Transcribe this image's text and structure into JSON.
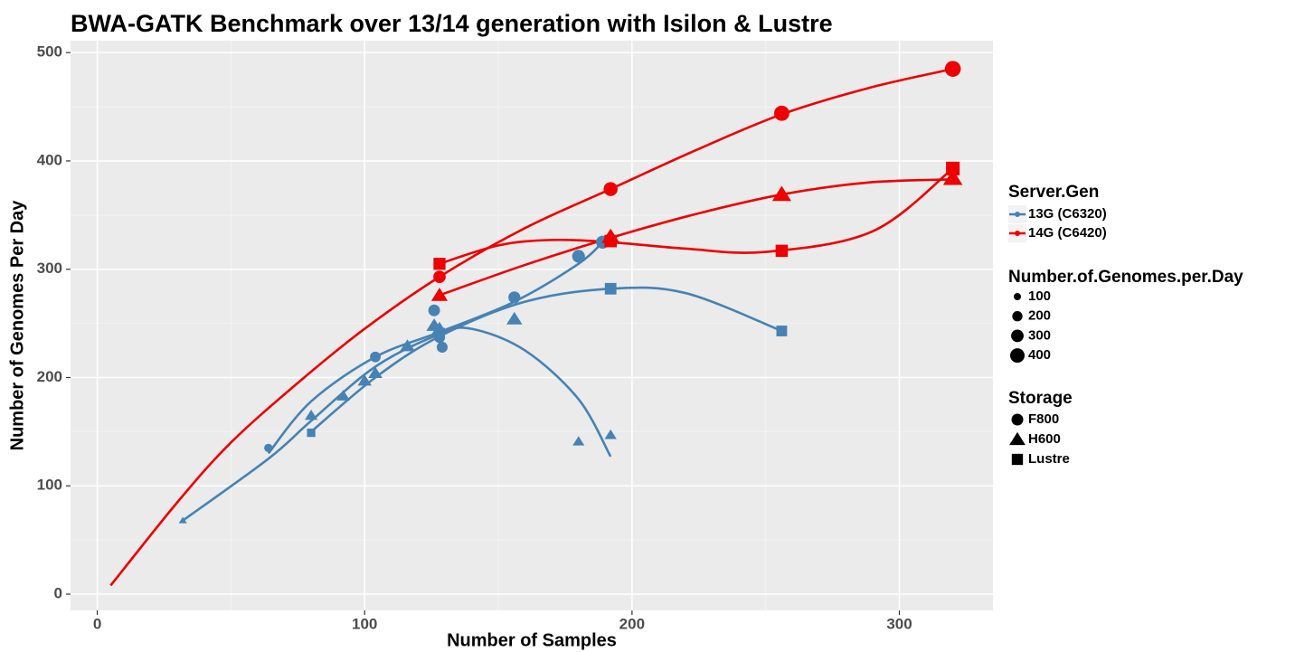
{
  "chart_data": {
    "type": "scatter",
    "title": "BWA-GATK Benchmark over 13/14 generation with Isilon & Lustre",
    "x_label": "Number of Samples",
    "y_label": "Number of Genomes Per Day",
    "xlim": [
      -10,
      335
    ],
    "ylim": [
      -15,
      511
    ],
    "xticks": [
      0,
      100,
      200,
      300
    ],
    "yticks": [
      0,
      100,
      200,
      300,
      400,
      500
    ],
    "grid": true,
    "minor_grid": true,
    "legend_position": "right",
    "color_legend_title": "Server.Gen",
    "size_legend": {
      "title": "Number.of.Genomes.per.Day",
      "values": [
        100,
        200,
        300,
        400
      ]
    },
    "shape_legend_title": "Storage",
    "series": [
      {
        "name": "13G (C6320)",
        "color": "#4682b4"
      },
      {
        "name": "14G (C6420)",
        "color": "#ee0000"
      }
    ],
    "storage": [
      {
        "name": "F800",
        "shape": "circle",
        "data": [
          {
            "x": [
              64,
              104,
              126,
              128,
              129,
              156,
              180,
              189
            ],
            "y": [
              135,
              219,
              262,
              237,
              228,
              274,
              312,
              325
            ],
            "fit_x": [
              64,
              80,
              104,
              128,
              156,
              180,
              189
            ],
            "fit_y": [
              130,
              178,
              219,
              242,
              270,
              305,
              325
            ]
          },
          {
            "x": [
              128,
              192,
              256,
              320
            ],
            "y": [
              293,
              374,
              444,
              485
            ],
            "fit_x": [
              5,
              30,
              50,
              75,
              100,
              128,
              160,
              192,
              224,
              256,
              288,
              320
            ],
            "fit_y": [
              8,
              85,
              140,
              195,
              245,
              293,
              338,
              374,
              410,
              443,
              467,
              485
            ]
          }
        ]
      },
      {
        "name": "H600",
        "shape": "triangle",
        "data": [
          {
            "x": [
              32,
              80,
              92,
              100,
              104,
              116,
              126,
              128,
              156,
              180,
              192
            ],
            "y": [
              68,
              165,
              183,
              197,
              204,
              229,
              248,
              245,
              254,
              141,
              147
            ],
            "fit_x": [
              32,
              64,
              80,
              104,
              128,
              140,
              160,
              180,
              192
            ],
            "fit_y": [
              68,
              125,
              160,
              210,
              240,
              245,
              225,
              180,
              127
            ]
          },
          {
            "x": [
              128,
              192,
              256,
              320
            ],
            "y": [
              276,
              330,
              369,
              384
            ],
            "fit_x": [
              128,
              160,
              192,
              224,
              256,
              288,
              320
            ],
            "fit_y": [
              276,
              304,
              329,
              351,
              369,
              380,
              383
            ]
          }
        ]
      },
      {
        "name": "Lustre",
        "shape": "square",
        "data": [
          {
            "x": [
              80,
              128,
              192,
              256
            ],
            "y": [
              149,
              241,
              282,
              243
            ],
            "fit_x": [
              80,
              104,
              128,
              160,
              192,
              220,
              256
            ],
            "fit_y": [
              150,
              200,
              238,
              270,
              282,
              278,
              243
            ]
          },
          {
            "x": [
              128,
              192,
              256,
              320
            ],
            "y": [
              305,
              326,
              317,
              393
            ],
            "fit_x": [
              128,
              150,
              170,
              192,
              220,
              250,
              290,
              320
            ],
            "fit_y": [
              305,
              322,
              327,
              325,
              319,
              316,
              335,
              393
            ]
          }
        ]
      }
    ]
  }
}
